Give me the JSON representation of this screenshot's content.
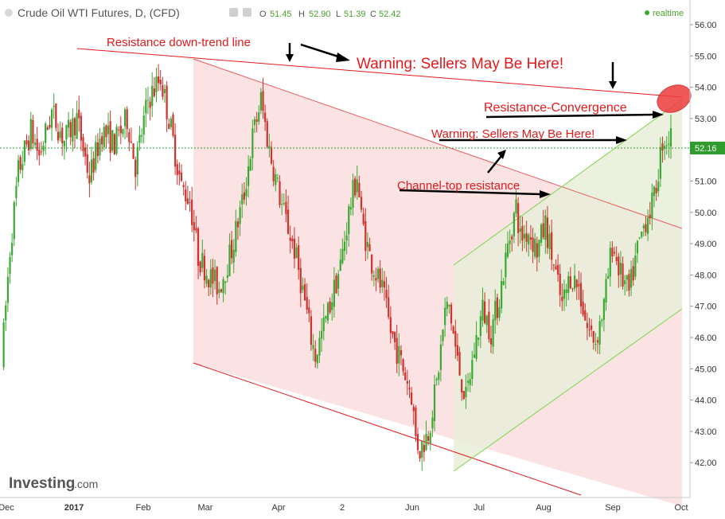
{
  "header": {
    "title": "Crude Oil WTI Futures, D, (CFD)",
    "open_label": "O",
    "open": "51.45",
    "high_label": "H",
    "high": "52.90",
    "low_label": "L",
    "low": "51.39",
    "close_label": "C",
    "close": "52.42",
    "realtime": "realtime"
  },
  "branding": {
    "logo": "Investing",
    "logo_suffix": ".com"
  },
  "colors": {
    "up": "#3aa832",
    "down": "#d0312d",
    "annotation": "#e31a1c",
    "downtrend_channel_fill": "#f9dada",
    "uptrend_channel_fill": "#e8edd9",
    "uptrend_line": "#7bd54f",
    "last_price_line": "#2e9d2e",
    "last_price_badge": "#2e9d2e"
  },
  "chart_data": {
    "type": "candlestick",
    "title": "Crude Oil WTI Futures, D, (CFD)",
    "x_ticks": [
      "Dec",
      "2017",
      "Feb",
      "Mar",
      "Apr",
      "2",
      "Jun",
      "Jul",
      "Aug",
      "Sep",
      "Oct"
    ],
    "y_ticks": [
      "42.00",
      "43.00",
      "44.00",
      "45.00",
      "46.00",
      "47.00",
      "48.00",
      "49.00",
      "50.00",
      "51.00",
      "52.00",
      "53.00",
      "54.00",
      "55.00",
      "56.00"
    ],
    "ylim": [
      41.5,
      56.3
    ],
    "last_price": "52.16",
    "grid": false,
    "annotations": [
      "Resistance down-trend line",
      "Warning: Sellers May Be Here!",
      "Resistance-Convergence",
      "Warning: Sellers May Be Here!",
      "Channel-top resistance"
    ],
    "price_path": [
      [
        0,
        45.2
      ],
      [
        4,
        48.8
      ],
      [
        8,
        51.3
      ],
      [
        14,
        52.6
      ],
      [
        18,
        51.8
      ],
      [
        24,
        53.2
      ],
      [
        30,
        52.3
      ],
      [
        36,
        53.0
      ],
      [
        42,
        51.1
      ],
      [
        48,
        52.6
      ],
      [
        54,
        52.2
      ],
      [
        60,
        53.0
      ],
      [
        64,
        51.5
      ],
      [
        70,
        53.6
      ],
      [
        76,
        54.3
      ],
      [
        80,
        53.0
      ],
      [
        86,
        50.8
      ],
      [
        90,
        50.4
      ],
      [
        94,
        48.6
      ],
      [
        100,
        47.9
      ],
      [
        104,
        47.6
      ],
      [
        110,
        48.8
      ],
      [
        116,
        50.6
      ],
      [
        120,
        52.4
      ],
      [
        124,
        53.6
      ],
      [
        128,
        52.0
      ],
      [
        134,
        50.2
      ],
      [
        140,
        48.8
      ],
      [
        144,
        47.5
      ],
      [
        148,
        46.0
      ],
      [
        150,
        45.4
      ],
      [
        156,
        46.8
      ],
      [
        162,
        48.3
      ],
      [
        166,
        50.0
      ],
      [
        170,
        51.2
      ],
      [
        172,
        49.8
      ],
      [
        176,
        48.6
      ],
      [
        182,
        47.5
      ],
      [
        186,
        46.2
      ],
      [
        192,
        45.0
      ],
      [
        196,
        44.2
      ],
      [
        198,
        42.8
      ],
      [
        200,
        42.4
      ],
      [
        204,
        43.0
      ],
      [
        208,
        44.5
      ],
      [
        212,
        46.8
      ],
      [
        214,
        47.0
      ],
      [
        218,
        45.2
      ],
      [
        222,
        44.0
      ],
      [
        226,
        45.6
      ],
      [
        230,
        46.9
      ],
      [
        234,
        46.2
      ],
      [
        238,
        47.3
      ],
      [
        242,
        48.9
      ],
      [
        246,
        50.2
      ],
      [
        248,
        49.2
      ],
      [
        252,
        49.4
      ],
      [
        256,
        48.8
      ],
      [
        260,
        49.6
      ],
      [
        264,
        48.3
      ],
      [
        268,
        47.0
      ],
      [
        272,
        48.0
      ],
      [
        276,
        47.6
      ],
      [
        280,
        46.3
      ],
      [
        284,
        45.9
      ],
      [
        288,
        47.0
      ],
      [
        292,
        49.0
      ],
      [
        296,
        48.0
      ],
      [
        300,
        47.4
      ],
      [
        304,
        48.8
      ],
      [
        308,
        49.8
      ],
      [
        312,
        50.4
      ],
      [
        316,
        52.3
      ],
      [
        320,
        52.4
      ]
    ]
  }
}
